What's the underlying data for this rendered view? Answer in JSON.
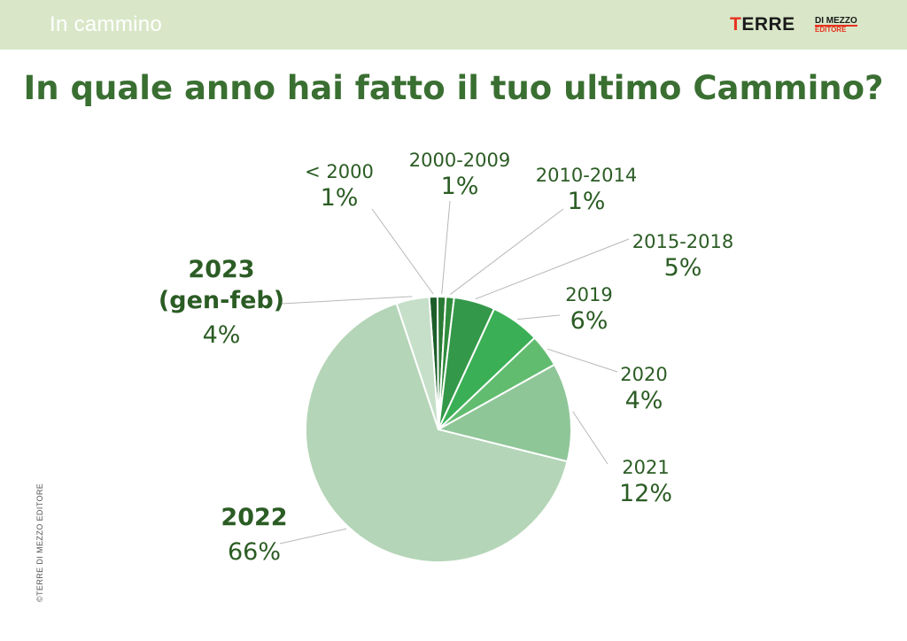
{
  "header": {
    "section": "In cammino",
    "logo_main": "TERRE",
    "logo_sub1": "DI MEZZO",
    "logo_sub2": "EDITORE"
  },
  "title": "In quale anno hai fatto il tuo ultimo Cammino?",
  "copyright": "©TERRE DI MEZZO EDITORE",
  "chart_data": {
    "type": "pie",
    "title": "In quale anno hai fatto il tuo ultimo Cammino?",
    "slices": [
      {
        "label": "< 2000",
        "value": 1,
        "value_label": "1%",
        "color": "#1c5e2a",
        "bold": false
      },
      {
        "label": "2000-2009",
        "value": 1,
        "value_label": "1%",
        "color": "#2a7a35",
        "bold": false
      },
      {
        "label": "2010-2014",
        "value": 1,
        "value_label": "1%",
        "color": "#2f8c3c",
        "bold": false
      },
      {
        "label": "2015-2018",
        "value": 5,
        "value_label": "5%",
        "color": "#34984a",
        "bold": false
      },
      {
        "label": "2019",
        "value": 6,
        "value_label": "6%",
        "color": "#3aaf55",
        "bold": false
      },
      {
        "label": "2020",
        "value": 4,
        "value_label": "4%",
        "color": "#62bc70",
        "bold": false
      },
      {
        "label": "2021",
        "value": 12,
        "value_label": "12%",
        "color": "#8fc698",
        "bold": false
      },
      {
        "label": "2022",
        "value": 66,
        "value_label": "66%",
        "color": "#b4d5b7",
        "bold": true
      },
      {
        "label": "2023 (gen-feb)",
        "label_lines": [
          "2023",
          "(gen-feb)"
        ],
        "value": 4,
        "value_label": "4%",
        "color": "#c6dfc8",
        "bold": true
      }
    ],
    "legend": "none"
  }
}
